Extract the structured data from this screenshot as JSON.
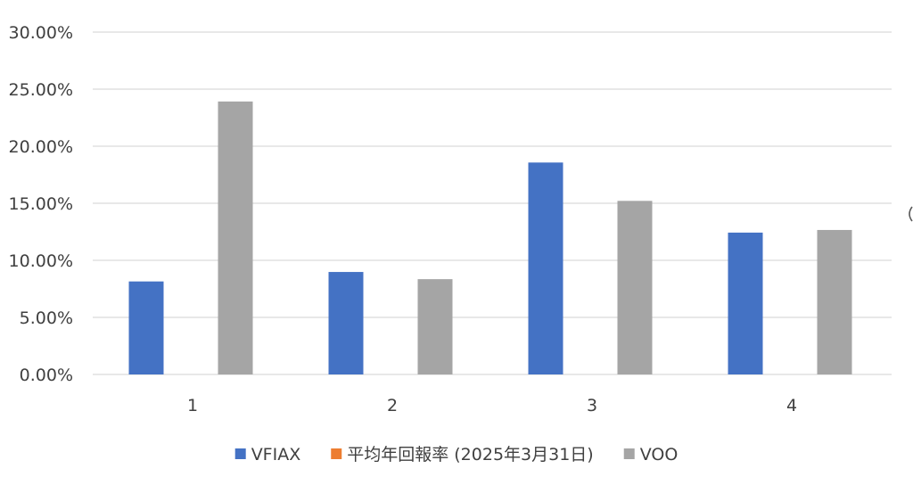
{
  "chart_data": {
    "type": "bar",
    "categories": [
      "1",
      "2",
      "3",
      "4"
    ],
    "series": [
      {
        "name": "VFIAX",
        "color": "#4472c4",
        "values": [
          0.0815,
          0.0898,
          0.1857,
          0.1243
        ]
      },
      {
        "name": "平均年回報率 (2025年3月31日)",
        "color": "#ed7d31",
        "values": [
          0,
          0,
          0,
          0
        ]
      },
      {
        "name": "VOO",
        "color": "#a5a5a5",
        "values": [
          0.2392,
          0.0835,
          0.1521,
          0.1266
        ]
      }
    ],
    "y_ticks": [
      "0.00%",
      "5.00%",
      "10.00%",
      "15.00%",
      "20.00%",
      "25.00%",
      "30.00%"
    ],
    "ylim": [
      0,
      0.3
    ],
    "grid": true,
    "legend_position": "bottom",
    "title": "",
    "xlabel": "",
    "ylabel": ""
  }
}
